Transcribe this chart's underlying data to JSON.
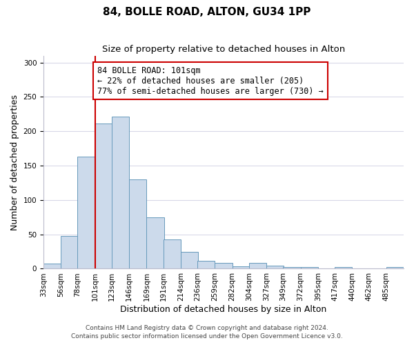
{
  "title": "84, BOLLE ROAD, ALTON, GU34 1PP",
  "subtitle": "Size of property relative to detached houses in Alton",
  "xlabel": "Distribution of detached houses by size in Alton",
  "ylabel": "Number of detached properties",
  "bin_labels": [
    "33sqm",
    "56sqm",
    "78sqm",
    "101sqm",
    "123sqm",
    "146sqm",
    "169sqm",
    "191sqm",
    "214sqm",
    "236sqm",
    "259sqm",
    "282sqm",
    "304sqm",
    "327sqm",
    "349sqm",
    "372sqm",
    "395sqm",
    "417sqm",
    "440sqm",
    "462sqm",
    "485sqm"
  ],
  "bin_edges": [
    33,
    56,
    78,
    101,
    123,
    146,
    169,
    191,
    214,
    236,
    259,
    282,
    304,
    327,
    349,
    372,
    395,
    417,
    440,
    462,
    485
  ],
  "bin_width": 23,
  "bar_values": [
    7,
    48,
    163,
    211,
    221,
    130,
    75,
    43,
    25,
    11,
    8,
    3,
    8,
    4,
    2,
    2,
    0,
    2,
    0,
    0,
    2
  ],
  "bar_color": "#ccdaeb",
  "bar_edge_color": "#6699bb",
  "vline_x": 101,
  "vline_color": "#cc0000",
  "ylim": [
    0,
    310
  ],
  "yticks": [
    0,
    50,
    100,
    150,
    200,
    250,
    300
  ],
  "annotation_text": "84 BOLLE ROAD: 101sqm\n← 22% of detached houses are smaller (205)\n77% of semi-detached houses are larger (730) →",
  "annotation_box_color": "#ffffff",
  "annotation_box_edge": "#cc0000",
  "footer1": "Contains HM Land Registry data © Crown copyright and database right 2024.",
  "footer2": "Contains public sector information licensed under the Open Government Licence v3.0.",
  "background_color": "#ffffff",
  "grid_color": "#d8d8e8",
  "title_fontsize": 11,
  "subtitle_fontsize": 9.5,
  "axis_label_fontsize": 9,
  "tick_fontsize": 7.5,
  "annotation_fontsize": 8.5,
  "footer_fontsize": 6.5
}
